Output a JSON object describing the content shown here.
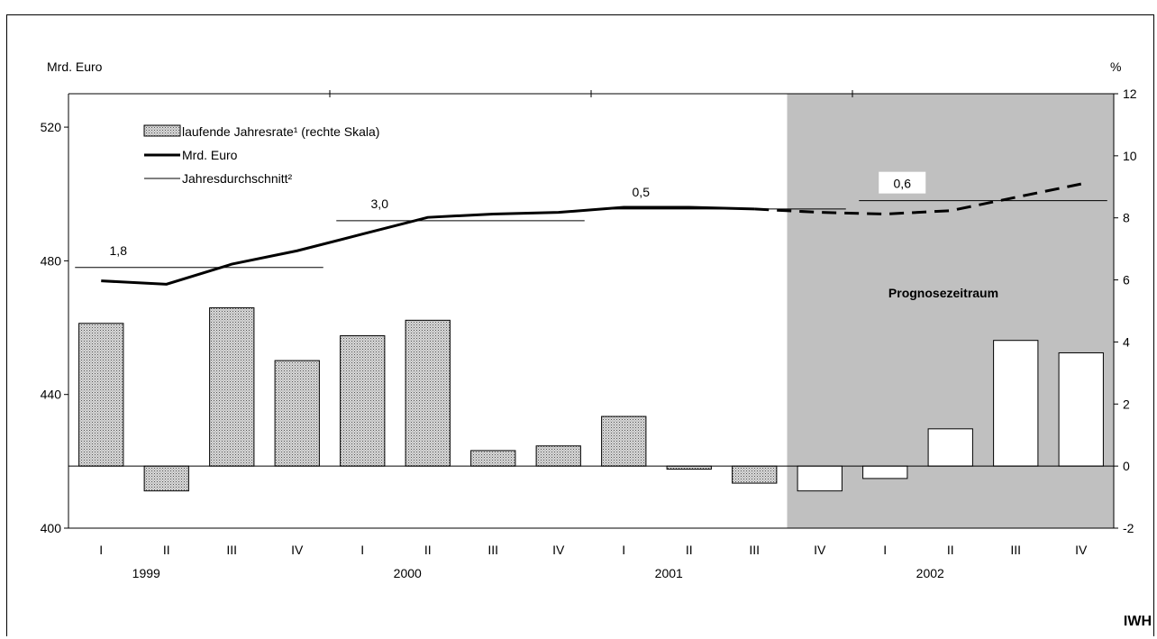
{
  "chart_data": {
    "type": "bar",
    "left_axis_unit": "Mrd. Euro",
    "right_axis_unit": "%",
    "left_ylim": [
      400,
      530
    ],
    "left_ticks": [
      400,
      440,
      480,
      520
    ],
    "right_ylim": [
      -2,
      12
    ],
    "right_ticks": [
      -2,
      0,
      2,
      4,
      6,
      8,
      10,
      12
    ],
    "quarters": [
      "I",
      "II",
      "III",
      "IV",
      "I",
      "II",
      "III",
      "IV",
      "I",
      "II",
      "III",
      "IV",
      "I",
      "II",
      "III",
      "IV"
    ],
    "years": [
      "1999",
      "2000",
      "2001",
      "2002"
    ],
    "legend": [
      {
        "key": "bars",
        "label": "laufende Jahresrate¹ (rechte Skala)"
      },
      {
        "key": "line",
        "label": "Mrd. Euro"
      },
      {
        "key": "avg",
        "label": "Jahresdurchschnitt²"
      }
    ],
    "series": [
      {
        "name": "laufende Jahresrate¹ (rechte Skala)",
        "axis": "right",
        "values": [
          4.6,
          -0.8,
          5.1,
          3.4,
          4.2,
          4.7,
          0.5,
          0.65,
          1.6,
          -0.1,
          -0.55,
          -0.8,
          -0.4,
          1.2,
          4.05,
          3.65
        ]
      },
      {
        "name": "Mrd. Euro",
        "axis": "left",
        "values": [
          474,
          473,
          479,
          483,
          488,
          493,
          494,
          494.5,
          496,
          496,
          495.5,
          494.5,
          494,
          495,
          499,
          503
        ],
        "forecast_from_index": 11
      }
    ],
    "annual_averages": [
      {
        "label": "1,8",
        "value": 478,
        "from": 0,
        "to": 3
      },
      {
        "label": "3,0",
        "value": 492,
        "from": 4,
        "to": 7
      },
      {
        "label": "0,5",
        "value": 495.5,
        "from": 8,
        "to": 11
      },
      {
        "label": "0,6",
        "value": 498,
        "from": 12,
        "to": 15
      }
    ],
    "forecast": {
      "label": "Prognosezeitraum",
      "from_index": 11,
      "color": "#c0c0c0"
    },
    "colors": {
      "bars_actual": "#b8b8b8",
      "bars_forecast": "#ffffff",
      "line": "#000000"
    }
  },
  "footer": {
    "source": "IWH"
  }
}
